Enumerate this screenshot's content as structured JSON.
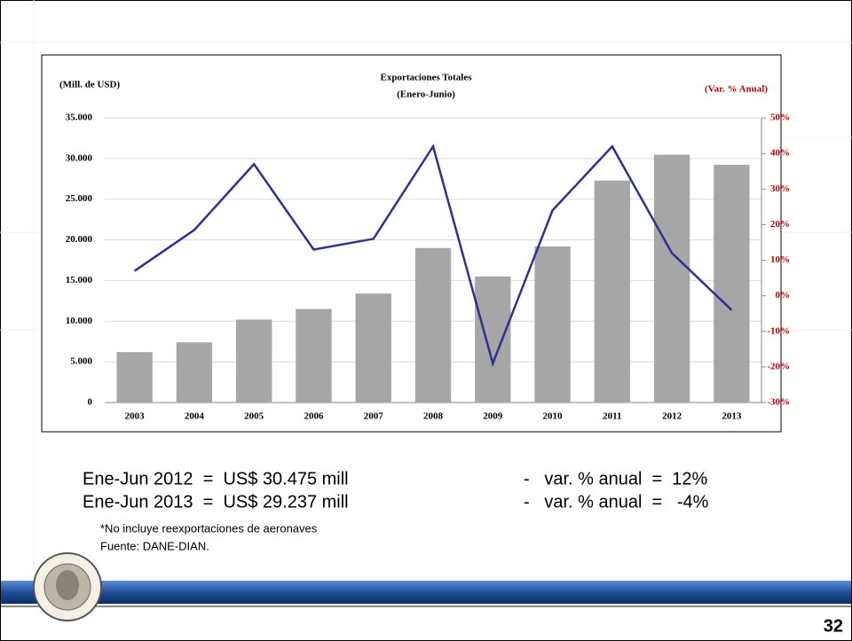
{
  "chart_data": {
    "type": "bar_line",
    "title": "Exportaciones Totales",
    "subtitle": "(Enero-Junio)",
    "y_label": "(Mill. de USD)",
    "y2_label": "(Var. % Anual)",
    "categories": [
      "2003",
      "2004",
      "2005",
      "2006",
      "2007",
      "2008",
      "2009",
      "2010",
      "2011",
      "2012",
      "2013"
    ],
    "series": [
      {
        "name": "Exportaciones",
        "type": "bar",
        "color": "#a6a6a6",
        "values": [
          6200,
          7400,
          10200,
          11500,
          13400,
          19000,
          15500,
          19200,
          27300,
          30475,
          29237
        ]
      },
      {
        "name": "Var. % Anual",
        "type": "line",
        "color": "#2e3192",
        "axis": "y2",
        "values": [
          7,
          18.5,
          37,
          13,
          16,
          42,
          -19,
          24,
          42,
          12,
          -4
        ]
      }
    ],
    "ylim": [
      0,
      35000
    ],
    "yticks": [
      0,
      {
        "value": 5000,
        "label": "5.000"
      },
      {
        "value": 10000,
        "label": "10.000"
      },
      {
        "value": 15000,
        "label": "15.000"
      },
      {
        "value": 20000,
        "label": "20.000"
      },
      {
        "value": 25000,
        "label": "25.000"
      },
      {
        "value": 30000,
        "label": "30.000"
      },
      {
        "value": 35000,
        "label": "35.000"
      }
    ],
    "y2lim": [
      -30,
      50
    ],
    "y2ticks": [
      {
        "value": -30,
        "label": "-30%"
      },
      {
        "value": -20,
        "label": "-20%"
      },
      {
        "value": -10,
        "label": "-10%"
      },
      {
        "value": 0,
        "label": "0%"
      },
      {
        "value": 10,
        "label": "10%"
      },
      {
        "value": 20,
        "label": "20%"
      },
      {
        "value": 30,
        "label": "30%"
      },
      {
        "value": 40,
        "label": "40%"
      },
      {
        "value": 50,
        "label": "50%"
      }
    ],
    "y2_color": "#c00000",
    "grid": true
  },
  "summary": [
    {
      "left": "Ene-Jun 2012  =  US$ 30.475 mill",
      "right": "-   var. % anual  =  12%"
    },
    {
      "left": "Ene-Jun 2013  =  US$ 29.237 mill",
      "right": "-   var. % anual  =   -4%"
    }
  ],
  "notes": [
    "*No incluye reexportaciones de aeronaves",
    "Fuente: DANE-DIAN."
  ],
  "page_number": "32"
}
